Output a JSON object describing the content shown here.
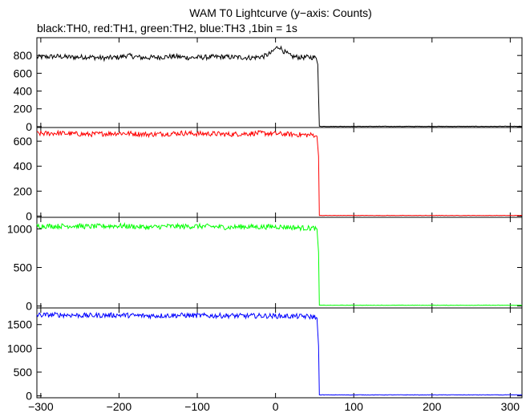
{
  "title": "WAM T0 Lightcurve (y−axis: Counts)",
  "subtitle": "black:TH0, red:TH1, green:TH2, blue:TH3 ,1bin = 1s",
  "chart_data": {
    "type": "line",
    "x_range": [
      -305,
      315
    ],
    "x_ticks": [
      -300,
      -200,
      -100,
      0,
      100,
      200,
      300
    ],
    "x_tick_labels": [
      "−300",
      "−200",
      "−100",
      "0",
      "100",
      "200",
      "300"
    ],
    "grid": false,
    "bin_size_s": 1,
    "panels": [
      {
        "name": "TH0",
        "color": "#000000",
        "ylim": [
          -10,
          1000
        ],
        "y_ticks": [
          0,
          200,
          400,
          600,
          800
        ],
        "y_tick_labels": [
          "0",
          "200",
          "400",
          "600",
          "800"
        ],
        "series": {
          "x": [
            -305,
            -280,
            -260,
            -240,
            -220,
            -200,
            -190,
            -170,
            -150,
            -130,
            -110,
            -90,
            -70,
            -50,
            -30,
            -15,
            -5,
            0,
            5,
            10,
            20,
            30,
            40,
            48,
            52,
            54,
            55,
            56,
            60,
            100,
            200,
            315
          ],
          "y": [
            780,
            790,
            780,
            785,
            770,
            780,
            800,
            775,
            780,
            790,
            775,
            780,
            785,
            780,
            775,
            790,
            830,
            880,
            900,
            850,
            790,
            780,
            780,
            780,
            770,
            700,
            350,
            5,
            3,
            3,
            3,
            3
          ]
        }
      },
      {
        "name": "TH1",
        "color": "#ff0000",
        "ylim": [
          -10,
          710
        ],
        "y_ticks": [
          0,
          200,
          400,
          600
        ],
        "y_tick_labels": [
          "0",
          "200",
          "400",
          "600"
        ],
        "series": {
          "x": [
            -305,
            -280,
            -260,
            -240,
            -220,
            -200,
            -180,
            -160,
            -140,
            -120,
            -100,
            -80,
            -60,
            -40,
            -20,
            0,
            20,
            40,
            50,
            53,
            55,
            56,
            60,
            100,
            200,
            315
          ],
          "y": [
            660,
            665,
            660,
            655,
            660,
            665,
            660,
            655,
            660,
            665,
            660,
            660,
            655,
            660,
            665,
            660,
            655,
            650,
            650,
            640,
            480,
            5,
            5,
            5,
            5,
            5
          ]
        }
      },
      {
        "name": "TH2",
        "color": "#00ff00",
        "ylim": [
          -25,
          1150
        ],
        "y_ticks": [
          0,
          500,
          1000
        ],
        "y_tick_labels": [
          "0",
          "500",
          "1000"
        ],
        "series": {
          "x": [
            -305,
            -280,
            -260,
            -240,
            -220,
            -200,
            -180,
            -160,
            -140,
            -120,
            -100,
            -80,
            -60,
            -40,
            -20,
            0,
            20,
            40,
            50,
            53,
            55,
            56,
            60,
            100,
            200,
            315
          ],
          "y": [
            1040,
            1035,
            1040,
            1030,
            1035,
            1040,
            1030,
            1020,
            1035,
            1030,
            1035,
            1030,
            1020,
            1030,
            1025,
            1030,
            1020,
            1010,
            1010,
            1000,
            700,
            10,
            10,
            10,
            10,
            10
          ]
        }
      },
      {
        "name": "TH3",
        "color": "#0000ff",
        "ylim": [
          -40,
          1850
        ],
        "y_ticks": [
          0,
          500,
          1000,
          1500
        ],
        "y_tick_labels": [
          "0",
          "500",
          "1000",
          "1500"
        ],
        "series": {
          "x": [
            -305,
            -280,
            -260,
            -240,
            -220,
            -200,
            -180,
            -160,
            -140,
            -120,
            -100,
            -80,
            -60,
            -40,
            -20,
            0,
            20,
            40,
            50,
            53,
            55,
            56,
            60,
            100,
            200,
            315
          ],
          "y": [
            1700,
            1705,
            1700,
            1690,
            1695,
            1700,
            1690,
            1685,
            1690,
            1695,
            1690,
            1685,
            1690,
            1680,
            1685,
            1680,
            1675,
            1670,
            1660,
            1640,
            1050,
            20,
            20,
            20,
            20,
            20
          ]
        }
      }
    ]
  }
}
